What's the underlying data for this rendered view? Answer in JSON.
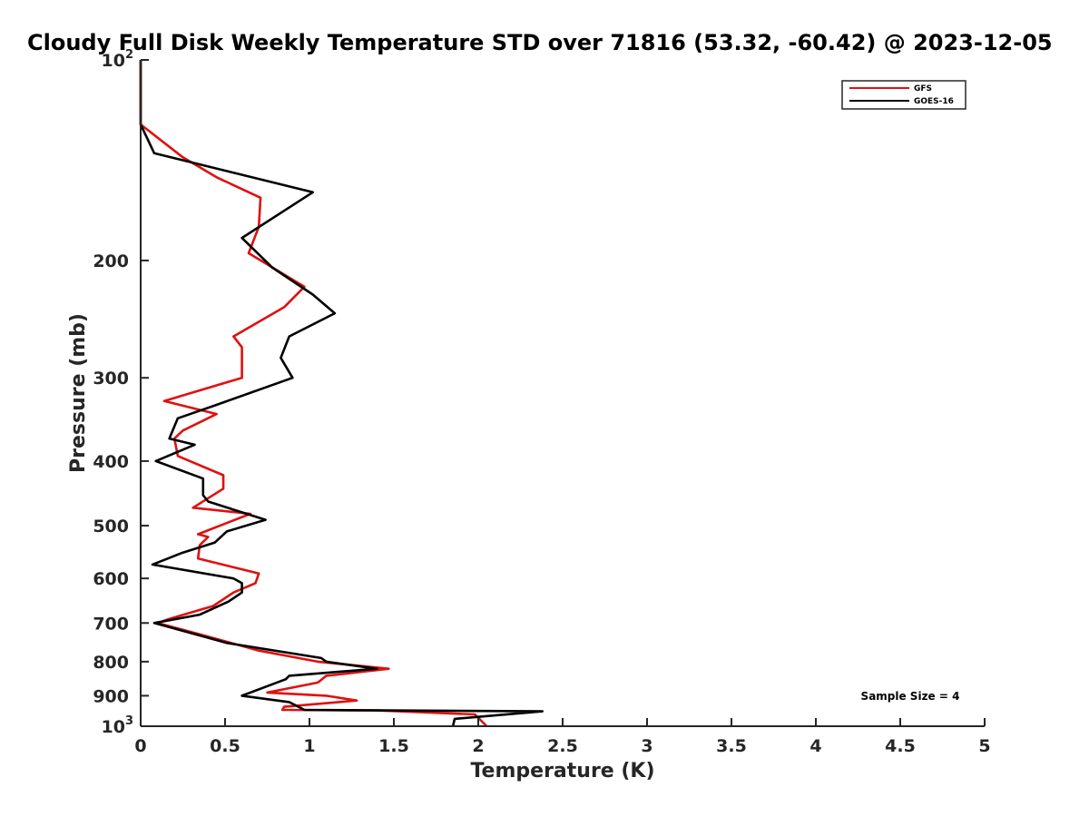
{
  "chart_data": {
    "type": "line",
    "title": "Cloudy Full Disk Weekly Temperature STD over 71816 (53.32, -60.42) @ 2023-12-05",
    "xlabel": "Temperature (K)",
    "ylabel": "Pressure (mb)",
    "xlim": [
      0,
      5
    ],
    "ylim": [
      1000,
      100
    ],
    "y_scale": "log",
    "x_ticks": [
      "0",
      "0.5",
      "1",
      "1.5",
      "2",
      "2.5",
      "3",
      "3.5",
      "4",
      "4.5",
      "5"
    ],
    "y_ticks": [
      {
        "value": 100,
        "base": "10",
        "exp": "2"
      },
      {
        "value": 200,
        "label": "200"
      },
      {
        "value": 300,
        "label": "300"
      },
      {
        "value": 400,
        "label": "400"
      },
      {
        "value": 500,
        "label": "500"
      },
      {
        "value": 600,
        "label": "600"
      },
      {
        "value": 700,
        "label": "700"
      },
      {
        "value": 800,
        "label": "800"
      },
      {
        "value": 900,
        "label": "900"
      },
      {
        "value": 1000,
        "base": "10",
        "exp": "3"
      }
    ],
    "grid": false,
    "legend_position": "top-right",
    "annotation": "Sample Size = 4",
    "series": [
      {
        "name": "GFS",
        "color": "#e01010",
        "points": [
          [
            0,
            100
          ],
          [
            0,
            125
          ],
          [
            0.25,
            140
          ],
          [
            0.45,
            150
          ],
          [
            0.71,
            161
          ],
          [
            0.7,
            178
          ],
          [
            0.64,
            195
          ],
          [
            0.97,
            219
          ],
          [
            0.85,
            235
          ],
          [
            0.55,
            260
          ],
          [
            0.6,
            270
          ],
          [
            0.6,
            300
          ],
          [
            0.14,
            325
          ],
          [
            0.45,
            340
          ],
          [
            0.25,
            360
          ],
          [
            0.2,
            370
          ],
          [
            0.22,
            393
          ],
          [
            0.49,
            420
          ],
          [
            0.49,
            440
          ],
          [
            0.31,
            470
          ],
          [
            0.65,
            480
          ],
          [
            0.34,
            515
          ],
          [
            0.4,
            520
          ],
          [
            0.35,
            535
          ],
          [
            0.34,
            560
          ],
          [
            0.7,
            590
          ],
          [
            0.68,
            610
          ],
          [
            0.55,
            630
          ],
          [
            0.43,
            660
          ],
          [
            0.17,
            690
          ],
          [
            0.1,
            700
          ],
          [
            0.37,
            730
          ],
          [
            0.7,
            770
          ],
          [
            1.05,
            800
          ],
          [
            1.47,
            820
          ],
          [
            1.1,
            840
          ],
          [
            1.05,
            860
          ],
          [
            0.75,
            890
          ],
          [
            1.1,
            900
          ],
          [
            1.28,
            915
          ],
          [
            0.85,
            935
          ],
          [
            0.84,
            945
          ],
          [
            1.4,
            947
          ],
          [
            1.98,
            960
          ],
          [
            2.05,
            1000
          ]
        ]
      },
      {
        "name": "GOES-16",
        "color": "#000000",
        "points": [
          [
            0,
            100
          ],
          [
            0,
            125
          ],
          [
            0.08,
            138
          ],
          [
            1.02,
            158
          ],
          [
            0.6,
            185
          ],
          [
            0.78,
            205
          ],
          [
            1.02,
            225
          ],
          [
            1.15,
            240
          ],
          [
            0.88,
            260
          ],
          [
            0.83,
            280
          ],
          [
            0.9,
            300
          ],
          [
            0.44,
            330
          ],
          [
            0.22,
            345
          ],
          [
            0.17,
            370
          ],
          [
            0.32,
            378
          ],
          [
            0.09,
            400
          ],
          [
            0.37,
            425
          ],
          [
            0.37,
            450
          ],
          [
            0.4,
            460
          ],
          [
            0.74,
            490
          ],
          [
            0.51,
            510
          ],
          [
            0.44,
            530
          ],
          [
            0.24,
            550
          ],
          [
            0.07,
            572
          ],
          [
            0.55,
            600
          ],
          [
            0.6,
            610
          ],
          [
            0.6,
            630
          ],
          [
            0.52,
            650
          ],
          [
            0.35,
            680
          ],
          [
            0.08,
            700
          ],
          [
            0.51,
            750
          ],
          [
            1.07,
            790
          ],
          [
            1.1,
            800
          ],
          [
            1.4,
            820
          ],
          [
            0.88,
            840
          ],
          [
            0.86,
            850
          ],
          [
            0.6,
            900
          ],
          [
            0.88,
            920
          ],
          [
            0.97,
            945
          ],
          [
            2.38,
            950
          ],
          [
            1.86,
            975
          ],
          [
            1.85,
            1000
          ]
        ]
      }
    ]
  }
}
